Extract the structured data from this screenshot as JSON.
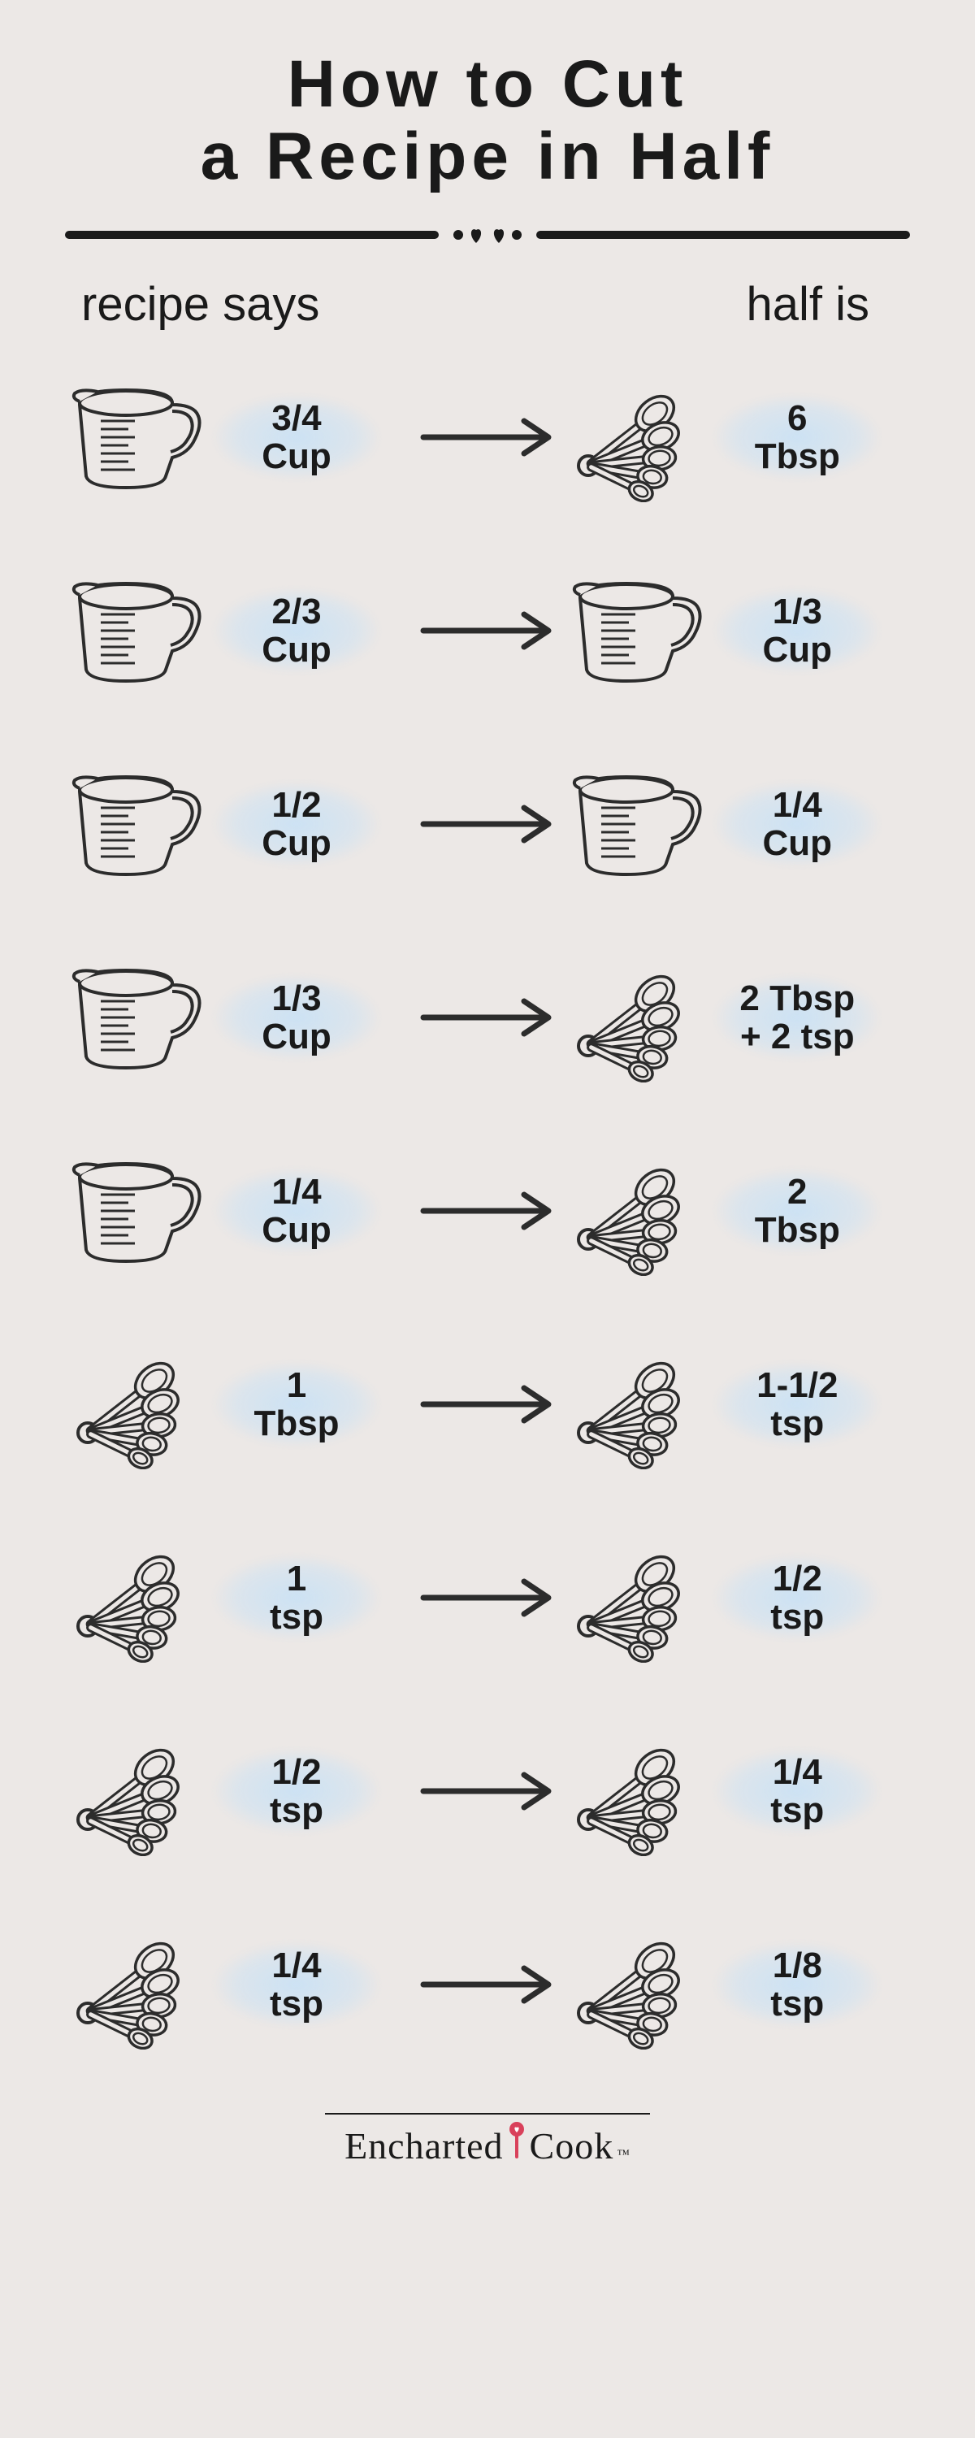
{
  "title_line1": "How to Cut",
  "title_line2": "a Recipe in Half",
  "header_left": "recipe says",
  "header_right": "half is",
  "colors": {
    "background": "#ece8e6",
    "text": "#1a1a1a",
    "stroke": "#2c2c2c",
    "label_wash": "#c8e1f5",
    "logo_accent": "#d9415b"
  },
  "rows": [
    {
      "from_icon": "cup",
      "from_label": "3/4\nCup",
      "to_icon": "spoons",
      "to_label": "6\nTbsp"
    },
    {
      "from_icon": "cup",
      "from_label": "2/3\nCup",
      "to_icon": "cup",
      "to_label": "1/3\nCup"
    },
    {
      "from_icon": "cup",
      "from_label": "1/2\nCup",
      "to_icon": "cup",
      "to_label": "1/4\nCup"
    },
    {
      "from_icon": "cup",
      "from_label": "1/3\nCup",
      "to_icon": "spoons",
      "to_label": "2 Tbsp\n+ 2 tsp"
    },
    {
      "from_icon": "cup",
      "from_label": "1/4\nCup",
      "to_icon": "spoons",
      "to_label": "2\nTbsp"
    },
    {
      "from_icon": "spoons",
      "from_label": "1\nTbsp",
      "to_icon": "spoons",
      "to_label": "1-1/2\ntsp"
    },
    {
      "from_icon": "spoons",
      "from_label": "1\ntsp",
      "to_icon": "spoons",
      "to_label": "1/2\ntsp"
    },
    {
      "from_icon": "spoons",
      "from_label": "1/2\ntsp",
      "to_icon": "spoons",
      "to_label": "1/4\ntsp"
    },
    {
      "from_icon": "spoons",
      "from_label": "1/4\ntsp",
      "to_icon": "spoons",
      "to_label": "1/8\ntsp"
    }
  ],
  "logo": {
    "left": "Encharted",
    "right": "Cook",
    "tm": "™"
  }
}
